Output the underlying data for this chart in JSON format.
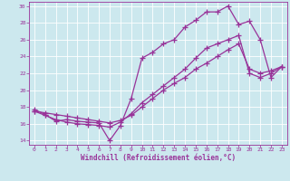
{
  "xlabel": "Windchill (Refroidissement éolien,°C)",
  "bg_color": "#cce8ee",
  "line_color": "#993399",
  "grid_color": "#ffffff",
  "xlim": [
    -0.5,
    23.5
  ],
  "ylim": [
    13.5,
    30.5
  ],
  "xticks": [
    0,
    1,
    2,
    3,
    4,
    5,
    6,
    7,
    8,
    9,
    10,
    11,
    12,
    13,
    14,
    15,
    16,
    17,
    18,
    19,
    20,
    21,
    22,
    23
  ],
  "yticks": [
    14,
    16,
    18,
    20,
    22,
    24,
    26,
    28,
    30
  ],
  "line1_x": [
    0,
    1,
    2,
    3,
    4,
    5,
    6,
    7,
    8,
    9,
    10,
    11,
    12,
    13,
    14,
    15,
    16,
    17,
    18,
    19,
    20,
    21,
    22,
    23
  ],
  "line1_y": [
    17.7,
    17.1,
    16.3,
    16.5,
    16.3,
    16.2,
    16.1,
    14.0,
    15.8,
    19.0,
    23.8,
    24.5,
    25.5,
    26.0,
    27.5,
    28.3,
    29.3,
    29.3,
    30.0,
    27.8,
    28.2,
    26.0,
    21.5,
    22.8
  ],
  "line2_x": [
    0,
    1,
    2,
    3,
    4,
    5,
    6,
    7,
    8,
    9,
    10,
    11,
    12,
    13,
    14,
    15,
    16,
    17,
    18,
    19,
    20,
    21,
    22,
    23
  ],
  "line2_y": [
    17.5,
    17.0,
    16.5,
    16.2,
    16.0,
    15.9,
    15.8,
    15.6,
    16.2,
    17.2,
    18.5,
    19.5,
    20.5,
    21.5,
    22.5,
    23.8,
    25.0,
    25.5,
    26.0,
    26.5,
    22.0,
    21.5,
    22.0,
    22.8
  ],
  "line3_x": [
    0,
    1,
    2,
    3,
    4,
    5,
    6,
    7,
    8,
    9,
    10,
    11,
    12,
    13,
    14,
    15,
    16,
    17,
    18,
    19,
    20,
    21,
    22,
    23
  ],
  "line3_y": [
    17.5,
    17.3,
    17.1,
    16.9,
    16.7,
    16.5,
    16.3,
    16.1,
    16.4,
    17.0,
    18.0,
    19.0,
    20.0,
    20.8,
    21.5,
    22.5,
    23.2,
    24.0,
    24.8,
    25.5,
    22.5,
    22.0,
    22.3,
    22.8
  ]
}
